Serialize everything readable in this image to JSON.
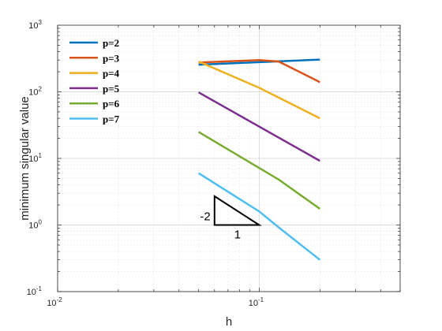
{
  "chart_data": {
    "type": "line",
    "xlabel": "h",
    "ylabel": "minimum singular value",
    "x_scale": "log",
    "y_scale": "log",
    "xlim": [
      0.01,
      0.5
    ],
    "ylim": [
      0.1,
      1000
    ],
    "grid": true,
    "legend_position": "top-left",
    "x_ticks": [
      {
        "base": "10",
        "exp": "-2",
        "value": 0.01
      },
      {
        "base": "10",
        "exp": "-1",
        "value": 0.1
      }
    ],
    "y_ticks": [
      {
        "base": "10",
        "exp": "-1",
        "value": 0.1
      },
      {
        "base": "10",
        "exp": "0",
        "value": 1
      },
      {
        "base": "10",
        "exp": "1",
        "value": 10
      },
      {
        "base": "10",
        "exp": "2",
        "value": 100
      },
      {
        "base": "10",
        "exp": "3",
        "value": 1000
      }
    ],
    "series": [
      {
        "name": "p=2",
        "color": "#0072BD",
        "x": [
          0.05,
          0.2
        ],
        "y": [
          255,
          305
        ]
      },
      {
        "name": "p=3",
        "color": "#D95319",
        "x": [
          0.05,
          0.1,
          0.125,
          0.2
        ],
        "y": [
          275,
          300,
          285,
          140
        ]
      },
      {
        "name": "p=4",
        "color": "#EDB120",
        "x": [
          0.05,
          0.1,
          0.2
        ],
        "y": [
          285,
          115,
          40
        ]
      },
      {
        "name": "p=5",
        "color": "#7E2F8E",
        "x": [
          0.05,
          0.2
        ],
        "y": [
          98,
          9.2
        ]
      },
      {
        "name": "p=6",
        "color": "#77AC30",
        "x": [
          0.05,
          0.125,
          0.2
        ],
        "y": [
          25,
          4.8,
          1.75
        ]
      },
      {
        "name": "p=7",
        "color": "#4DBEEE",
        "x": [
          0.05,
          0.1,
          0.125,
          0.2
        ],
        "y": [
          6.0,
          1.6,
          0.92,
          0.3
        ]
      }
    ],
    "annotations": {
      "slope_triangle": {
        "x": [
          0.06,
          0.06,
          0.1
        ],
        "y": [
          2.7,
          1.0,
          1.0
        ]
      },
      "rise_label": {
        "text": "-2",
        "x": 0.054,
        "y": 1.35
      },
      "run_label": {
        "text": "1",
        "x": 0.078,
        "y": 0.72
      }
    }
  }
}
